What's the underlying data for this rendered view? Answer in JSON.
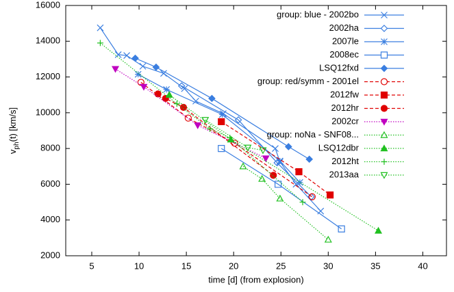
{
  "chart_data": {
    "type": "line",
    "xlabel": "time   [d]      (from explosion)",
    "ylabel": {
      "main": "v",
      "sub": "ph",
      "rest": "(t)   [km/s]"
    },
    "xlim": [
      2.25,
      42.5
    ],
    "xticks": [
      5,
      10,
      15,
      20,
      25,
      30,
      35,
      40
    ],
    "ylim": [
      2000,
      16000
    ],
    "yticks": [
      2000,
      4000,
      6000,
      8000,
      10000,
      12000,
      14000,
      16000
    ],
    "grid": false,
    "legend": "top-right",
    "series": [
      {
        "name": "group: blue - 2002bo",
        "color": "#3a7ee0",
        "marker": "x",
        "dash": "solid",
        "x": [
          5.9,
          7.8,
          8.7,
          10.4,
          12.6,
          14.8,
          16.0,
          18.9,
          24.4,
          24.9,
          26.6,
          29.2
        ],
        "values": [
          14750,
          13250,
          13200,
          12600,
          12200,
          11350,
          10650,
          9950,
          8000,
          7250,
          6000,
          4500
        ]
      },
      {
        "name": "2002ha",
        "color": "#3a7ee0",
        "marker": "diamond",
        "dash": "solid",
        "x": [
          14.5,
          20.5,
          24.6,
          28.2
        ],
        "values": [
          11500,
          9600,
          7200,
          5300
        ]
      },
      {
        "name": "2007le",
        "color": "#3a7ee0",
        "marker": "star",
        "dash": "solid",
        "x": [
          9.9,
          12.9,
          18.8,
          24.9,
          27.0
        ],
        "values": [
          12150,
          11300,
          9900,
          7300,
          6100
        ]
      },
      {
        "name": "2008ec",
        "color": "#3a7ee0",
        "marker": "square",
        "dash": "solid",
        "x": [
          18.7,
          24.7,
          31.4
        ],
        "values": [
          8000,
          6000,
          3500
        ]
      },
      {
        "name": "LSQ12fxd",
        "color": "#3a7ee0",
        "marker": "diamond-filled",
        "dash": "solid",
        "x": [
          9.6,
          11.8,
          17.7,
          25.8,
          28.0
        ],
        "values": [
          13050,
          12550,
          10800,
          8100,
          7400
        ]
      },
      {
        "name": "group: red/symm - 2001el",
        "color": "#e00000",
        "marker": "circle",
        "dash": "dashed",
        "x": [
          10.2,
          15.2,
          20.1,
          28.3
        ],
        "values": [
          11700,
          9700,
          8300,
          5300
        ]
      },
      {
        "name": "2012fw",
        "color": "#e00000",
        "marker": "square-filled",
        "dash": "dashed",
        "x": [
          18.7,
          26.9,
          30.2
        ],
        "values": [
          9500,
          6700,
          5400
        ]
      },
      {
        "name": "2012hr",
        "color": "#e00000",
        "marker": "circle-filled",
        "dash": "dashed",
        "x": [
          12.0,
          12.8,
          14.7,
          24.2
        ],
        "values": [
          11050,
          10800,
          10300,
          6500
        ]
      },
      {
        "name": "2002cr",
        "color": "#c000c0",
        "marker": "tri-down-filled",
        "dash": "dotted",
        "x": [
          7.5,
          10.5,
          16.2,
          23.4
        ],
        "values": [
          12450,
          11450,
          9300,
          7450
        ]
      },
      {
        "name": "group: noNa - SNF08...",
        "color": "#20c020",
        "marker": "tri-up",
        "dash": "dotted",
        "x": [
          21.0,
          23.0,
          24.9,
          30.0
        ],
        "values": [
          7000,
          6300,
          5200,
          2900
        ]
      },
      {
        "name": "LSQ12dbr",
        "color": "#20c020",
        "marker": "tri-up-filled",
        "dash": "dotted",
        "x": [
          13.2,
          19.7,
          35.3
        ],
        "values": [
          11000,
          8500,
          3400
        ]
      },
      {
        "name": "2012ht",
        "color": "#20c020",
        "marker": "plus",
        "dash": "dotted",
        "x": [
          5.9,
          14.0,
          17.5,
          19.6,
          27.3
        ],
        "values": [
          13900,
          10500,
          9100,
          8600,
          5000
        ]
      },
      {
        "name": "2013aa",
        "color": "#20c020",
        "marker": "tri-down",
        "dash": "dotted",
        "x": [
          17.0,
          21.5,
          23.1
        ],
        "values": [
          9600,
          8050,
          7900
        ]
      }
    ]
  }
}
